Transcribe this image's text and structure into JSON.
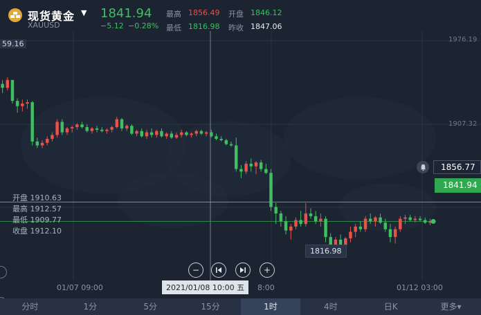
{
  "header": {
    "title": "现货黄金",
    "symbol": "XAUUSD",
    "price": "1841.94",
    "change": "−5.12",
    "change_pct": "−0.28%",
    "high_label": "最高",
    "high_value": "1856.49",
    "low_label": "最低",
    "low_value": "1816.98",
    "open_label": "开盘",
    "open_value": "1846.12",
    "prev_close_label": "昨收",
    "prev_close_value": "1847.06"
  },
  "ohlc_panel": {
    "open": "开盘 1910.63",
    "high": "最高 1912.57",
    "low": "最低 1909.77",
    "close": "收盘 1912.10"
  },
  "axis": {
    "y_top_partial": "59.16",
    "y_1976": "1976.19",
    "y_1907": "1907.32",
    "x_label_1": "01/07 09:00",
    "x_label_2": "8:00",
    "x_label_3": "01/12 03:00",
    "crosshair_time": "2021/01/08 10:00 五",
    "min_label": "1816.98",
    "hline_label": "1856.77",
    "last_label": "1841.94"
  },
  "tabs": [
    "分时",
    "1分",
    "5分",
    "15分",
    "1时",
    "4时",
    "日K",
    "更多▾"
  ],
  "active_tab": "1时",
  "colors": {
    "up": "#e5534b",
    "down": "#3fbf62",
    "bg": "#1c2431"
  },
  "chart_data": {
    "type": "candlestick",
    "title": "",
    "ylim": [
      1800,
      1990
    ],
    "x_ticks": [
      "01/07 09:00",
      "01/08 18:00",
      "01/12 03:00"
    ],
    "candles": [
      [
        1947,
        1950,
        1940,
        1944
      ],
      [
        1944,
        1952,
        1942,
        1950
      ],
      [
        1950,
        1950,
        1932,
        1934
      ],
      [
        1934,
        1936,
        1925,
        1930
      ],
      [
        1930,
        1935,
        1926,
        1932
      ],
      [
        1932,
        1935,
        1928,
        1933
      ],
      [
        1933,
        1934,
        1900,
        1903
      ],
      [
        1903,
        1906,
        1898,
        1900
      ],
      [
        1900,
        1904,
        1898,
        1902
      ],
      [
        1902,
        1907,
        1900,
        1905
      ],
      [
        1905,
        1910,
        1903,
        1908
      ],
      [
        1908,
        1920,
        1906,
        1918
      ],
      [
        1918,
        1920,
        1908,
        1910
      ],
      [
        1910,
        1914,
        1908,
        1913
      ],
      [
        1913,
        1915,
        1910,
        1914
      ],
      [
        1914,
        1917,
        1912,
        1916
      ],
      [
        1916,
        1918,
        1913,
        1914
      ],
      [
        1914,
        1916,
        1910,
        1911
      ],
      [
        1911,
        1914,
        1909,
        1913
      ],
      [
        1913,
        1915,
        1910,
        1912
      ],
      [
        1912,
        1914,
        1910,
        1911
      ],
      [
        1911,
        1913,
        1909,
        1912
      ],
      [
        1912,
        1915,
        1910,
        1914
      ],
      [
        1914,
        1922,
        1913,
        1920
      ],
      [
        1920,
        1921,
        1911,
        1913
      ],
      [
        1913,
        1916,
        1911,
        1915
      ],
      [
        1915,
        1916,
        1908,
        1909
      ],
      [
        1909,
        1912,
        1907,
        1911
      ],
      [
        1911,
        1913,
        1906,
        1907
      ],
      [
        1907,
        1912,
        1905,
        1910
      ],
      [
        1910,
        1913,
        1906,
        1908
      ],
      [
        1908,
        1912,
        1906,
        1911
      ],
      [
        1911,
        1913,
        1906,
        1907
      ],
      [
        1907,
        1910,
        1905,
        1909
      ],
      [
        1909,
        1911,
        1905,
        1906
      ],
      [
        1906,
        1910,
        1905,
        1908
      ],
      [
        1908,
        1912,
        1906,
        1910
      ],
      [
        1910,
        1911,
        1907,
        1908
      ],
      [
        1908,
        1910,
        1906,
        1909
      ],
      [
        1909,
        1912,
        1907,
        1911
      ],
      [
        1911,
        1912,
        1908,
        1909
      ],
      [
        1909,
        1911,
        1907,
        1910
      ],
      [
        1910,
        1912,
        1906,
        1907
      ],
      [
        1907,
        1909,
        1904,
        1905
      ],
      [
        1905,
        1907,
        1903,
        1904
      ],
      [
        1904,
        1905,
        1900,
        1901
      ],
      [
        1901,
        1903,
        1899,
        1900
      ],
      [
        1900,
        1906,
        1880,
        1882
      ],
      [
        1882,
        1885,
        1875,
        1880
      ],
      [
        1880,
        1888,
        1878,
        1886
      ],
      [
        1886,
        1890,
        1880,
        1884
      ],
      [
        1884,
        1888,
        1878,
        1887
      ],
      [
        1887,
        1889,
        1880,
        1882
      ],
      [
        1882,
        1886,
        1878,
        1879
      ],
      [
        1879,
        1882,
        1850,
        1853
      ],
      [
        1853,
        1856,
        1840,
        1848
      ],
      [
        1848,
        1850,
        1838,
        1842
      ],
      [
        1842,
        1846,
        1832,
        1835
      ],
      [
        1835,
        1840,
        1828,
        1838
      ],
      [
        1838,
        1845,
        1836,
        1843
      ],
      [
        1843,
        1850,
        1838,
        1840
      ],
      [
        1840,
        1856,
        1838,
        1848
      ],
      [
        1848,
        1852,
        1844,
        1846
      ],
      [
        1846,
        1850,
        1840,
        1842
      ],
      [
        1842,
        1848,
        1838,
        1844
      ],
      [
        1844,
        1846,
        1826,
        1830
      ],
      [
        1830,
        1833,
        1817,
        1822
      ],
      [
        1822,
        1830,
        1820,
        1828
      ],
      [
        1828,
        1832,
        1822,
        1824
      ],
      [
        1824,
        1830,
        1822,
        1829
      ],
      [
        1829,
        1838,
        1826,
        1834
      ],
      [
        1834,
        1840,
        1830,
        1838
      ],
      [
        1838,
        1842,
        1834,
        1836
      ],
      [
        1836,
        1846,
        1834,
        1844
      ],
      [
        1844,
        1848,
        1840,
        1842
      ],
      [
        1842,
        1846,
        1838,
        1845
      ],
      [
        1845,
        1848,
        1840,
        1841
      ],
      [
        1841,
        1844,
        1834,
        1836
      ],
      [
        1836,
        1840,
        1826,
        1830
      ],
      [
        1830,
        1838,
        1825,
        1836
      ],
      [
        1836,
        1846,
        1834,
        1844
      ],
      [
        1844,
        1847,
        1840,
        1845
      ],
      [
        1845,
        1847,
        1842,
        1843
      ],
      [
        1843,
        1846,
        1841,
        1844
      ],
      [
        1844,
        1846,
        1842,
        1843
      ],
      [
        1843,
        1845,
        1840,
        1841
      ],
      [
        1841,
        1844,
        1839,
        1842
      ]
    ]
  }
}
